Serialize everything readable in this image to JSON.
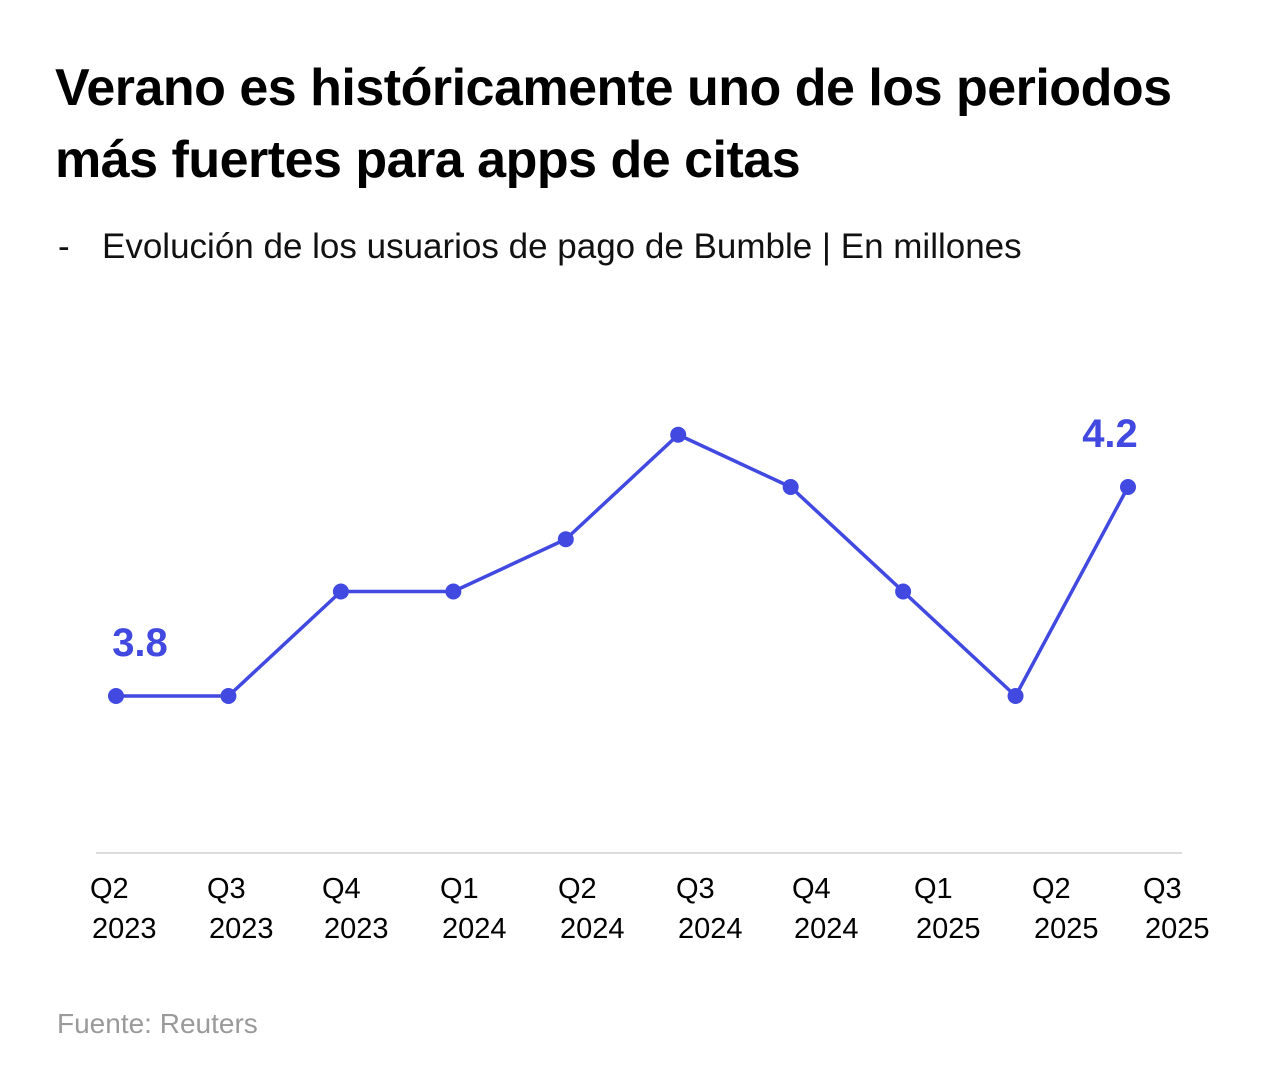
{
  "chart_data": {
    "type": "line",
    "title": "Verano es históricamente uno de los periodos más fuertes para apps de citas",
    "subtitle": "Evolución de los usuarios de pago de Bumble | En millones",
    "subtitle_prefix": "-",
    "categories": [
      [
        "Q2",
        "2023"
      ],
      [
        "Q3",
        "2023"
      ],
      [
        "Q4",
        "2023"
      ],
      [
        "Q1",
        "2024"
      ],
      [
        "Q2",
        "2024"
      ],
      [
        "Q3",
        "2024"
      ],
      [
        "Q4",
        "2024"
      ],
      [
        "Q1",
        "2025"
      ],
      [
        "Q2",
        "2025"
      ],
      [
        "Q3",
        "2025"
      ]
    ],
    "series": [
      {
        "name": "Usuarios de pago de Bumble",
        "values": [
          3.8,
          3.8,
          4.0,
          4.0,
          4.1,
          4.3,
          4.2,
          4.0,
          3.8,
          4.2
        ],
        "color": "#4149e0"
      }
    ],
    "data_labels": [
      {
        "index": 0,
        "text": "3.8"
      },
      {
        "index": 9,
        "text": "4.2"
      }
    ],
    "xlabel": "",
    "ylabel": "",
    "ylim": [
      3.55,
      4.45
    ],
    "grid": false,
    "legend": "none",
    "source": "Fuente: Reuters"
  }
}
